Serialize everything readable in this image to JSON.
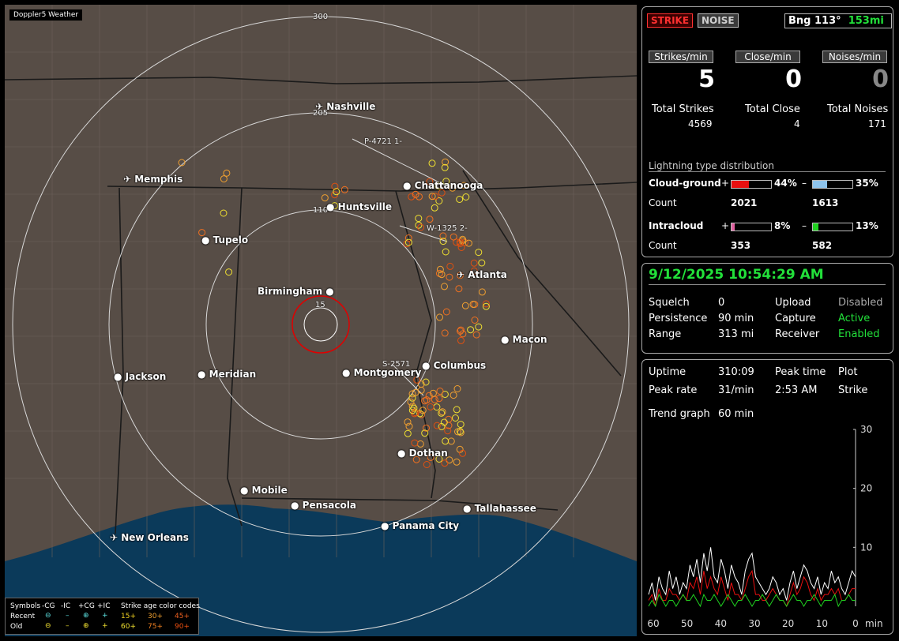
{
  "app": {
    "brand": "Doppler5 Weather"
  },
  "map": {
    "range_labels": [
      "300",
      "205",
      "110",
      "15"
    ],
    "cities": [
      "Nashville",
      "Memphis",
      "Chattanooga",
      "Huntsville",
      "Tupelo",
      "Atlanta",
      "Birmingham",
      "Macon",
      "Columbus",
      "Jackson",
      "Meridian",
      "Montgomery",
      "Dothan",
      "Mobile",
      "Pensacola",
      "Tallahassee",
      "Panama City",
      "New Orleans"
    ],
    "storm_labels": [
      "P-4721 1-",
      "W-1325 2-",
      "S-2571"
    ]
  },
  "legend": {
    "symbols_label": "Symbols",
    "types": [
      "-CG",
      "-IC",
      "+CG",
      "+IC"
    ],
    "rows": [
      "Recent",
      "Old"
    ],
    "age_title": "Strike age color codes",
    "recent_ages": [
      "15+",
      "30+",
      "45+"
    ],
    "old_ages": [
      "60+",
      "75+",
      "90+"
    ],
    "age_colors": [
      "#f0d020",
      "#f0a030",
      "#f06020",
      "#f0e030",
      "#f08020",
      "#f05010"
    ]
  },
  "mode": {
    "strike": "STRIKE",
    "noise": "NOISE"
  },
  "bearing": {
    "label": "Bng 113°",
    "distance": "153mi"
  },
  "rates": [
    {
      "label": "Strikes/min",
      "value": "5"
    },
    {
      "label": "Close/min",
      "value": "0"
    },
    {
      "label": "Noises/min",
      "value": "0"
    }
  ],
  "totals": [
    {
      "label": "Total Strikes",
      "value": "4569"
    },
    {
      "label": "Total Close",
      "value": "4"
    },
    {
      "label": "Total Noises",
      "value": "171"
    }
  ],
  "distribution": {
    "title": "Lightning type distribution",
    "cg": {
      "label": "Cloud-ground",
      "pos_sign": "+",
      "pos_pct": "44%",
      "pos_frac": 0.44,
      "pos_color": "#e81010",
      "neg_sign": "–",
      "neg_pct": "35%",
      "neg_frac": 0.35,
      "neg_color": "#8ec4ec",
      "count_label": "Count",
      "pos_count": "2021",
      "neg_count": "1613"
    },
    "ic": {
      "label": "Intracloud",
      "pos_sign": "+",
      "pos_pct": "8%",
      "pos_frac": 0.08,
      "pos_color": "#e060a0",
      "neg_sign": "–",
      "neg_pct": "13%",
      "neg_frac": 0.13,
      "neg_color": "#20d020",
      "count_label": "Count",
      "pos_count": "353",
      "neg_count": "582"
    }
  },
  "status": {
    "datetime": "9/12/2025 10:54:29 AM",
    "squelch_label": "Squelch",
    "squelch": "0",
    "upload_label": "Upload",
    "upload": "Disabled",
    "persistence_label": "Persistence",
    "persistence": "90 min",
    "capture_label": "Capture",
    "capture": "Active",
    "range_label": "Range",
    "range": "313 mi",
    "receiver_label": "Receiver",
    "receiver": "Enabled"
  },
  "stats": {
    "uptime_label": "Uptime",
    "uptime": "310:09",
    "peak_time_label": "Peak time",
    "plot_label": "Plot",
    "peak_rate_label": "Peak rate",
    "peak_rate": "31/min",
    "peak_time": "2:53 AM",
    "plot": "Strike",
    "trend_label": "Trend graph",
    "trend": "60 min"
  },
  "chart_data": {
    "type": "line",
    "x_ticks": [
      "60",
      "50",
      "40",
      "30",
      "20",
      "10",
      "0"
    ],
    "x_unit": "min",
    "y_ticks": [
      "30",
      "20",
      "10"
    ],
    "ylim": [
      0,
      30
    ],
    "series": [
      {
        "color": "#ffffff",
        "values": [
          2,
          4,
          1,
          5,
          3,
          2,
          6,
          3,
          5,
          2,
          4,
          3,
          7,
          5,
          8,
          4,
          9,
          6,
          10,
          5,
          4,
          8,
          6,
          3,
          7,
          5,
          4,
          2,
          6,
          8,
          9,
          5,
          4,
          3,
          2,
          3,
          5,
          4,
          2,
          3,
          1,
          4,
          6,
          3,
          5,
          7,
          6,
          4,
          3,
          5,
          2,
          4,
          3,
          6,
          4,
          5,
          3,
          2,
          4,
          6,
          5
        ]
      },
      {
        "color": "#e81010",
        "values": [
          1,
          2,
          0,
          3,
          1,
          1,
          3,
          2,
          2,
          1,
          2,
          1,
          4,
          3,
          5,
          2,
          6,
          3,
          5,
          3,
          2,
          5,
          3,
          1,
          4,
          2,
          2,
          1,
          3,
          5,
          6,
          2,
          2,
          1,
          1,
          2,
          3,
          2,
          1,
          1,
          0,
          2,
          4,
          2,
          3,
          5,
          4,
          2,
          1,
          3,
          1,
          2,
          2,
          3,
          2,
          3,
          1,
          1,
          2,
          3,
          3
        ]
      },
      {
        "color": "#20d020",
        "values": [
          0,
          1,
          0,
          2,
          1,
          0,
          1,
          1,
          0,
          1,
          2,
          1,
          1,
          2,
          1,
          0,
          2,
          1,
          1,
          2,
          1,
          0,
          1,
          2,
          1,
          0,
          1,
          1,
          2,
          1,
          0,
          1,
          1,
          2,
          1,
          0,
          1,
          2,
          1,
          1,
          0,
          1,
          2,
          1,
          1,
          0,
          1,
          1,
          2,
          1,
          0,
          1,
          1,
          1,
          2,
          0,
          1,
          1,
          2,
          1,
          1
        ]
      }
    ]
  }
}
